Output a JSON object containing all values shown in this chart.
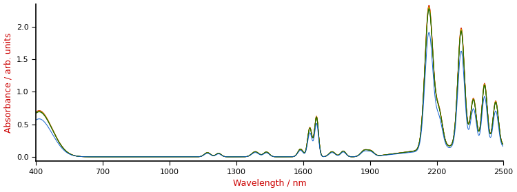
{
  "xlim": [
    400,
    2500
  ],
  "ylim": [
    -0.07,
    2.35
  ],
  "xlabel": "Wavelength / nm",
  "ylabel": "Absorbance / arb. units",
  "xlabel_color": "#cc0000",
  "ylabel_color": "#cc0000",
  "tick_color": "#000000",
  "xticks": [
    400,
    700,
    1000,
    1300,
    1600,
    1900,
    2200,
    2500
  ],
  "yticks": [
    0.0,
    0.5,
    1.0,
    1.5,
    2.0
  ],
  "background_color": "#ffffff",
  "line_width": 0.7,
  "colors": [
    "#cc0000",
    "#dd4400",
    "#ee8800",
    "#bbbb00",
    "#669900",
    "#336600",
    "#226600",
    "#0055cc"
  ],
  "base_scale": 1.0,
  "scale_spread": [
    0.0,
    0.01,
    0.02,
    0.03,
    0.04,
    0.05,
    0.06,
    -0.15
  ],
  "figsize": [
    7.5,
    2.79
  ],
  "dpi": 100
}
